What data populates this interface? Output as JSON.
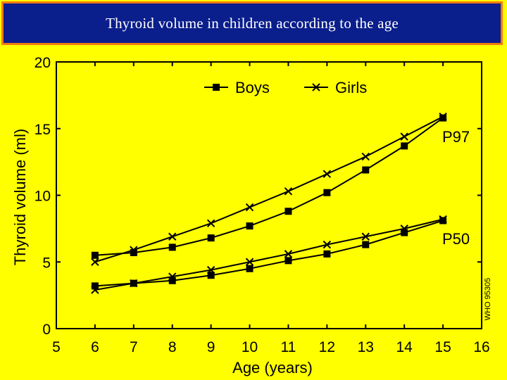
{
  "title": "Thyroid volume in children according to the age",
  "chart_data": {
    "type": "line",
    "xlabel": "Age (years)",
    "ylabel": "Thyroid volume (ml)",
    "xlim": [
      5,
      16
    ],
    "ylim": [
      0,
      20
    ],
    "xticks": [
      "5",
      "6",
      "7",
      "8",
      "9",
      "10",
      "11",
      "12",
      "13",
      "14",
      "15",
      "16"
    ],
    "yticks": [
      "0",
      "5",
      "10",
      "15",
      "20"
    ],
    "x": [
      6,
      7,
      8,
      9,
      10,
      11,
      12,
      13,
      14,
      15
    ],
    "legend": [
      {
        "name": "Boys",
        "marker": "square"
      },
      {
        "name": "Girls",
        "marker": "cross"
      }
    ],
    "series": [
      {
        "name": "Boys P97",
        "marker": "square",
        "values": [
          5.5,
          5.7,
          6.1,
          6.8,
          7.7,
          8.8,
          10.2,
          11.9,
          13.7,
          15.8
        ]
      },
      {
        "name": "Girls P97",
        "marker": "cross",
        "values": [
          5.0,
          5.9,
          6.9,
          7.9,
          9.1,
          10.3,
          11.6,
          12.9,
          14.4,
          15.9
        ]
      },
      {
        "name": "Boys P50",
        "marker": "square",
        "values": [
          3.2,
          3.4,
          3.6,
          4.0,
          4.5,
          5.1,
          5.6,
          6.3,
          7.2,
          8.1
        ]
      },
      {
        "name": "Girls P50",
        "marker": "cross",
        "values": [
          2.9,
          3.4,
          3.9,
          4.4,
          5.0,
          5.6,
          6.3,
          6.9,
          7.5,
          8.2
        ]
      }
    ],
    "annotations": [
      "P97",
      "P50"
    ],
    "watermark": "WHO 95305"
  }
}
